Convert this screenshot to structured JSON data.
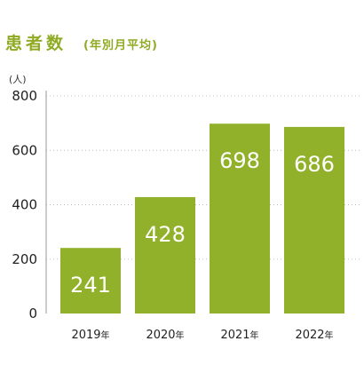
{
  "title": "患者数",
  "subtitle": "(年別月平均)",
  "unit_label": "(人)",
  "colors": {
    "bar": "#92b12a",
    "title": "#8fab23"
  },
  "chart_data": {
    "type": "bar",
    "categories": [
      "2019年",
      "2020年",
      "2021年",
      "2022年"
    ],
    "values": [
      241,
      428,
      698,
      686
    ],
    "ylim": [
      0,
      800
    ],
    "yticks": [
      0,
      200,
      400,
      600,
      800
    ],
    "grid": true,
    "legend": "none",
    "data_labels": true
  }
}
